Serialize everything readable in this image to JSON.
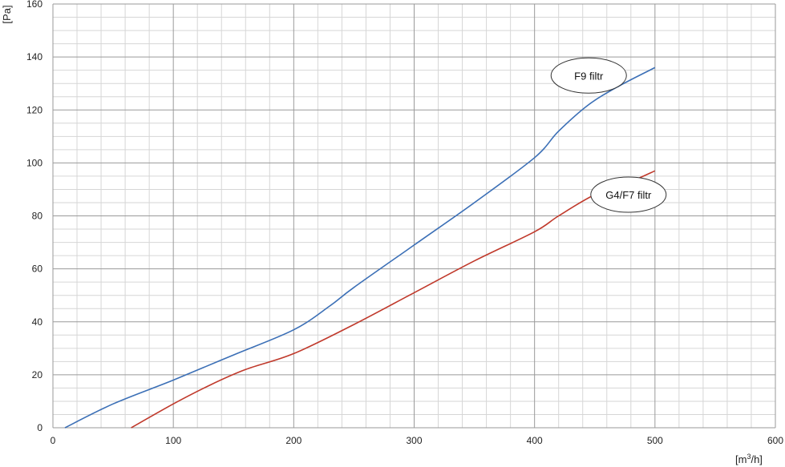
{
  "chart_data": {
    "type": "line",
    "xlabel": "[m³/h]",
    "xlabel_base": "[m",
    "xlabel_sup": "3",
    "xlabel_tail": "/h]",
    "ylabel": "[Pa]",
    "xlim": [
      0,
      600
    ],
    "ylim": [
      0,
      160
    ],
    "x_major_ticks": [
      0,
      100,
      200,
      300,
      400,
      500,
      600
    ],
    "y_major_ticks": [
      0,
      20,
      40,
      60,
      80,
      100,
      120,
      140,
      160
    ],
    "x_minor_step": 20,
    "y_minor_step": 5,
    "grid": true,
    "series": [
      {
        "color": "#3b6fb6",
        "points": [
          [
            10,
            0
          ],
          [
            50,
            9
          ],
          [
            100,
            18
          ],
          [
            150,
            27.5
          ],
          [
            200,
            37
          ],
          [
            230,
            46
          ],
          [
            250,
            53
          ],
          [
            300,
            69
          ],
          [
            350,
            85
          ],
          [
            400,
            102
          ],
          [
            420,
            112
          ],
          [
            445,
            122
          ],
          [
            470,
            129
          ],
          [
            500,
            136
          ]
        ]
      },
      {
        "color": "#c0392b",
        "points": [
          [
            65,
            0
          ],
          [
            100,
            9
          ],
          [
            130,
            16
          ],
          [
            160,
            22
          ],
          [
            200,
            28
          ],
          [
            250,
            39
          ],
          [
            300,
            51
          ],
          [
            350,
            63
          ],
          [
            400,
            74
          ],
          [
            420,
            80
          ],
          [
            450,
            88
          ],
          [
            480,
            93
          ],
          [
            500,
            97
          ]
        ]
      }
    ],
    "annotations": [
      {
        "text": "F9 filtr",
        "x": 445,
        "y": 133
      },
      {
        "text": "G4/F7 filtr",
        "x": 478,
        "y": 88
      }
    ]
  }
}
